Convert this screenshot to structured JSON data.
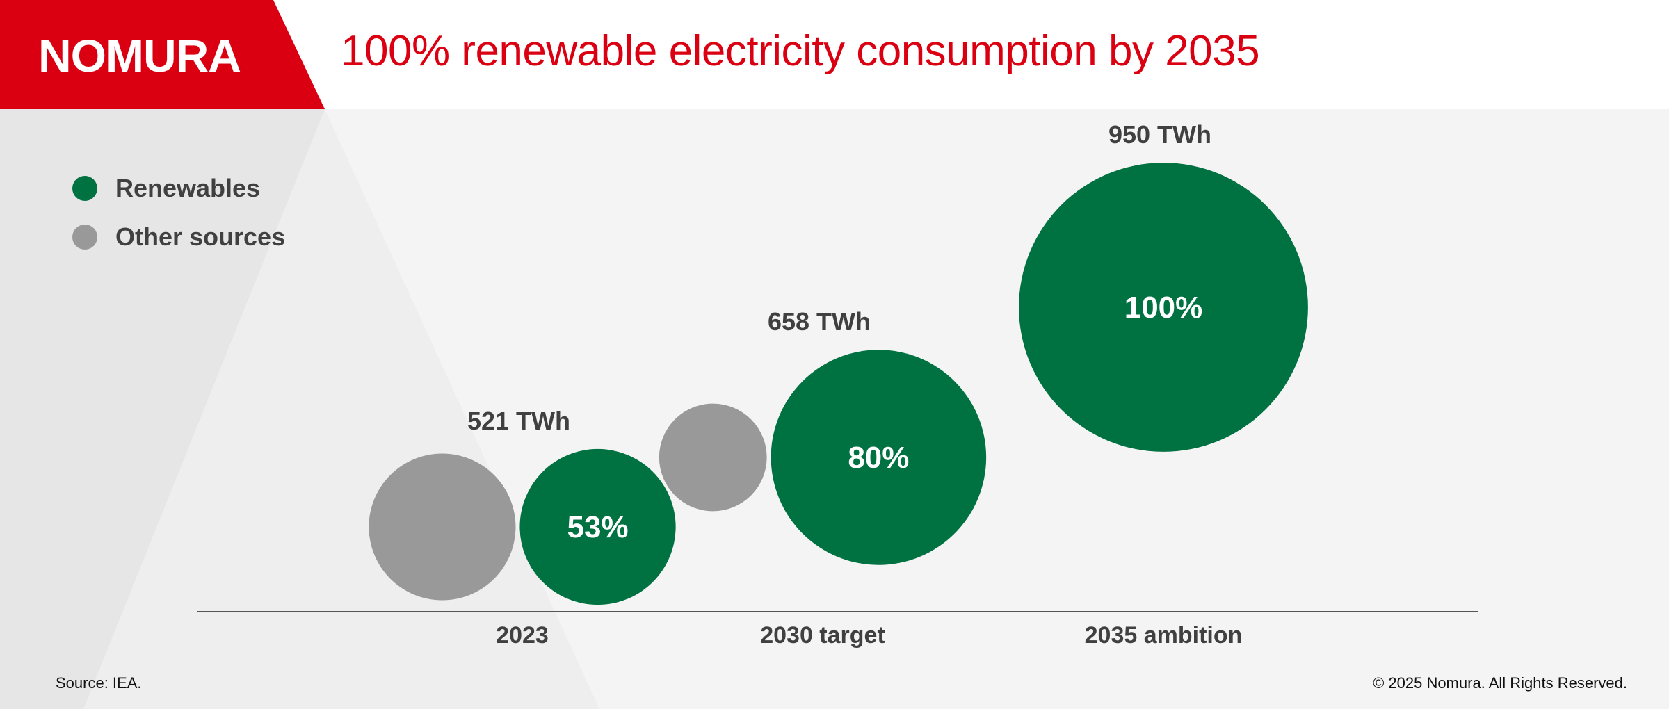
{
  "header": {
    "logo_text": "NOMURA",
    "title": "100% renewable electricity consumption by 2035"
  },
  "colors": {
    "brand_red": "#db0011",
    "renewables": "#007140",
    "other": "#999999",
    "text_dark": "#404040"
  },
  "legend": [
    {
      "label": "Renewables",
      "color": "#007140"
    },
    {
      "label": "Other sources",
      "color": "#999999"
    }
  ],
  "chart_data": {
    "type": "bubble",
    "title": "100% renewable electricity consumption by 2035",
    "categories": [
      "2023",
      "2030 target",
      "2035 ambition"
    ],
    "totals_twh": [
      521,
      658,
      950
    ],
    "total_labels": [
      "521 TWh",
      "658 TWh",
      "950 TWh"
    ],
    "series": [
      {
        "name": "Renewables",
        "values_pct": [
          53,
          80,
          100
        ],
        "labels": [
          "53%",
          "80%",
          "100%"
        ],
        "color": "#007140"
      },
      {
        "name": "Other sources",
        "values_pct": [
          47,
          20,
          0
        ],
        "color": "#999999"
      }
    ],
    "legend_position": "top-left",
    "grid": false
  },
  "footer": {
    "source": "Source: IEA.",
    "copyright": "© 2025 Nomura. All Rights Reserved."
  }
}
